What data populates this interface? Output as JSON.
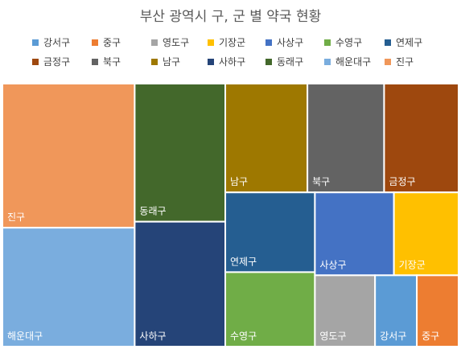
{
  "chart_data": {
    "type": "treemap",
    "title": "부산 광역시 구, 군 별 약국 현황",
    "legend_position": "top",
    "legend_order": [
      "강서구",
      "중구",
      "영도구",
      "기장군",
      "사상구",
      "수영구",
      "연제구",
      "금정구",
      "북구",
      "남구",
      "사하구",
      "동래구",
      "해운대구",
      "진구"
    ],
    "items": [
      {
        "name": "진구",
        "value": 160,
        "color": "#F0975A"
      },
      {
        "name": "해운대구",
        "value": 132,
        "color": "#7AADDE"
      },
      {
        "name": "동래구",
        "value": 105,
        "color": "#43682B"
      },
      {
        "name": "사하구",
        "value": 95,
        "color": "#254478"
      },
      {
        "name": "남구",
        "value": 75,
        "color": "#9E7800"
      },
      {
        "name": "북구",
        "value": 70,
        "color": "#636363"
      },
      {
        "name": "금정구",
        "value": 68,
        "color": "#9E480E"
      },
      {
        "name": "연제구",
        "value": 60,
        "color": "#255E91"
      },
      {
        "name": "수영구",
        "value": 56,
        "color": "#70AD47"
      },
      {
        "name": "사상구",
        "value": 55,
        "color": "#4472C4"
      },
      {
        "name": "기장군",
        "value": 45,
        "color": "#FFC000"
      },
      {
        "name": "영도구",
        "value": 36,
        "color": "#A5A5A5"
      },
      {
        "name": "강서구",
        "value": 25,
        "color": "#5B9BD5"
      },
      {
        "name": "중구",
        "value": 25,
        "color": "#ED7D31"
      }
    ]
  }
}
